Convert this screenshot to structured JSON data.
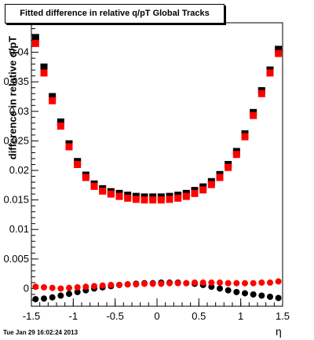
{
  "chart_data": {
    "type": "scatter",
    "title": "Fitted difference in relative q/pT  Global Tracks",
    "xlabel": "η",
    "ylabel": "difference in relative q/pT",
    "xlim": [
      -1.5,
      1.5
    ],
    "ylim": [
      -0.003,
      0.045
    ],
    "x_ticks": [
      "-1.5",
      "-1",
      "-0.5",
      "0",
      "0.5",
      "1",
      "1.5"
    ],
    "y_ticks": [
      "0",
      "0.005",
      "0.01",
      "0.015",
      "0.02",
      "0.025",
      "0.03",
      "0.035",
      "0.04"
    ],
    "timestamp": "Tue Jan 29 16:02:24 2013",
    "grid": false,
    "series": [
      {
        "marker": "square",
        "color": "#000000",
        "x": [
          -1.45,
          -1.35,
          -1.25,
          -1.15,
          -1.05,
          -0.95,
          -0.85,
          -0.75,
          -0.65,
          -0.55,
          -0.45,
          -0.35,
          -0.25,
          -0.15,
          -0.05,
          0.05,
          0.15,
          0.25,
          0.35,
          0.45,
          0.55,
          0.65,
          0.75,
          0.85,
          0.95,
          1.05,
          1.15,
          1.25,
          1.35,
          1.45
        ],
        "y": [
          0.0425,
          0.0375,
          0.0325,
          0.0282,
          0.0245,
          0.0215,
          0.0192,
          0.0177,
          0.0169,
          0.0164,
          0.0161,
          0.0158,
          0.0156,
          0.0155,
          0.0155,
          0.0155,
          0.0156,
          0.0158,
          0.0161,
          0.0166,
          0.0172,
          0.0181,
          0.0193,
          0.021,
          0.0232,
          0.0262,
          0.0298,
          0.0335,
          0.037,
          0.0405
        ]
      },
      {
        "marker": "square",
        "color": "#ff0000",
        "x": [
          -1.45,
          -1.35,
          -1.25,
          -1.15,
          -1.05,
          -0.95,
          -0.85,
          -0.75,
          -0.65,
          -0.55,
          -0.45,
          -0.35,
          -0.25,
          -0.15,
          -0.05,
          0.05,
          0.15,
          0.25,
          0.35,
          0.45,
          0.55,
          0.65,
          0.75,
          0.85,
          0.95,
          1.05,
          1.15,
          1.25,
          1.35,
          1.45
        ],
        "y": [
          0.0415,
          0.0365,
          0.0318,
          0.0275,
          0.024,
          0.021,
          0.0188,
          0.0173,
          0.0165,
          0.016,
          0.0156,
          0.0153,
          0.0151,
          0.015,
          0.015,
          0.015,
          0.0151,
          0.0153,
          0.0156,
          0.0161,
          0.0167,
          0.0176,
          0.0188,
          0.0205,
          0.0227,
          0.0257,
          0.0293,
          0.033,
          0.0365,
          0.0398
        ]
      },
      {
        "marker": "circle",
        "color": "#000000",
        "x": [
          -1.45,
          -1.35,
          -1.25,
          -1.15,
          -1.05,
          -0.95,
          -0.85,
          -0.75,
          -0.65,
          -0.55,
          -0.45,
          -0.35,
          -0.25,
          -0.15,
          -0.05,
          0.05,
          0.15,
          0.25,
          0.35,
          0.45,
          0.55,
          0.65,
          0.75,
          0.85,
          0.95,
          1.05,
          1.15,
          1.25,
          1.35,
          1.45
        ],
        "y": [
          -0.0018,
          -0.0017,
          -0.0015,
          -0.0012,
          -0.0009,
          -0.0006,
          -0.0003,
          0.0,
          0.0002,
          0.0004,
          0.0006,
          0.0007,
          0.0008,
          0.0009,
          0.0009,
          0.001,
          0.001,
          0.001,
          0.0009,
          0.0008,
          0.0006,
          0.0003,
          0.0,
          -0.0003,
          -0.0006,
          -0.0008,
          -0.001,
          -0.0012,
          -0.0014,
          -0.0016
        ]
      },
      {
        "marker": "circle",
        "color": "#ff0000",
        "x": [
          -1.45,
          -1.35,
          -1.25,
          -1.15,
          -1.05,
          -0.95,
          -0.85,
          -0.75,
          -0.65,
          -0.55,
          -0.45,
          -0.35,
          -0.25,
          -0.15,
          -0.05,
          0.05,
          0.15,
          0.25,
          0.35,
          0.45,
          0.55,
          0.65,
          0.75,
          0.85,
          0.95,
          1.05,
          1.15,
          1.25,
          1.35,
          1.45
        ],
        "y": [
          0.0003,
          0.0002,
          0.0001,
          0.0,
          0.0001,
          0.0002,
          0.0003,
          0.0004,
          0.0005,
          0.0006,
          0.0006,
          0.0007,
          0.0007,
          0.0008,
          0.0008,
          0.0008,
          0.0009,
          0.0009,
          0.0009,
          0.001,
          0.001,
          0.001,
          0.001,
          0.0009,
          0.0009,
          0.0009,
          0.0009,
          0.001,
          0.001,
          0.0012
        ]
      }
    ]
  }
}
